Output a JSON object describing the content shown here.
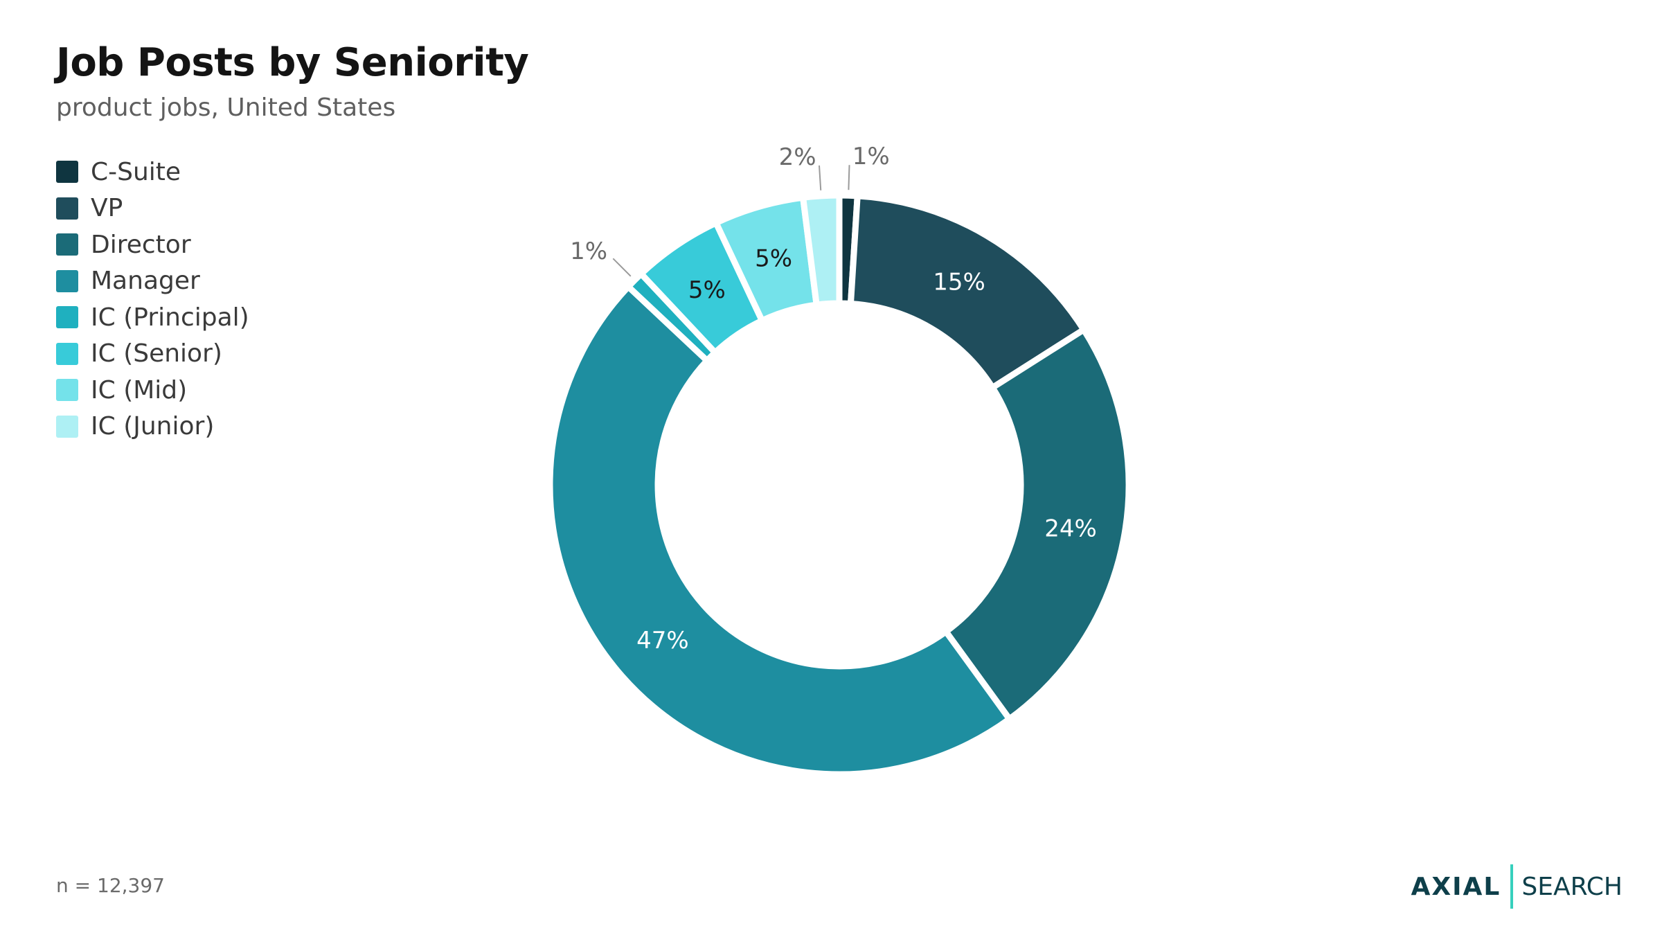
{
  "header": {
    "title": "Job Posts by Seniority",
    "subtitle": "product jobs, United States"
  },
  "footer": {
    "sample_size": "n = 12,397",
    "brand_primary": "AXIAL",
    "brand_secondary": "SEARCH"
  },
  "colors": {
    "accent_bar": "#37d0bd",
    "brand_text": "#0e3f4a"
  },
  "chart_data": {
    "type": "pie",
    "variant": "donut",
    "legend_position": "top-left",
    "categories": [
      "C-Suite",
      "VP",
      "Director",
      "Manager",
      "IC (Principal)",
      "IC (Senior)",
      "IC (Mid)",
      "IC (Junior)"
    ],
    "values": [
      1,
      15,
      24,
      47,
      1,
      5,
      5,
      2
    ],
    "labels": [
      "1%",
      "15%",
      "24%",
      "47%",
      "1%",
      "5%",
      "5%",
      "2%"
    ],
    "colors": [
      "#0f3540",
      "#1f4d5c",
      "#1b6b78",
      "#1e8ea0",
      "#1fb0bf",
      "#38cbd9",
      "#74e2ea",
      "#aef0f4"
    ],
    "label_colors": [
      "#6a6a6a",
      "#ffffff",
      "#ffffff",
      "#ffffff",
      "#6a6a6a",
      "#1a1a1a",
      "#1a1a1a",
      "#6a6a6a"
    ]
  }
}
